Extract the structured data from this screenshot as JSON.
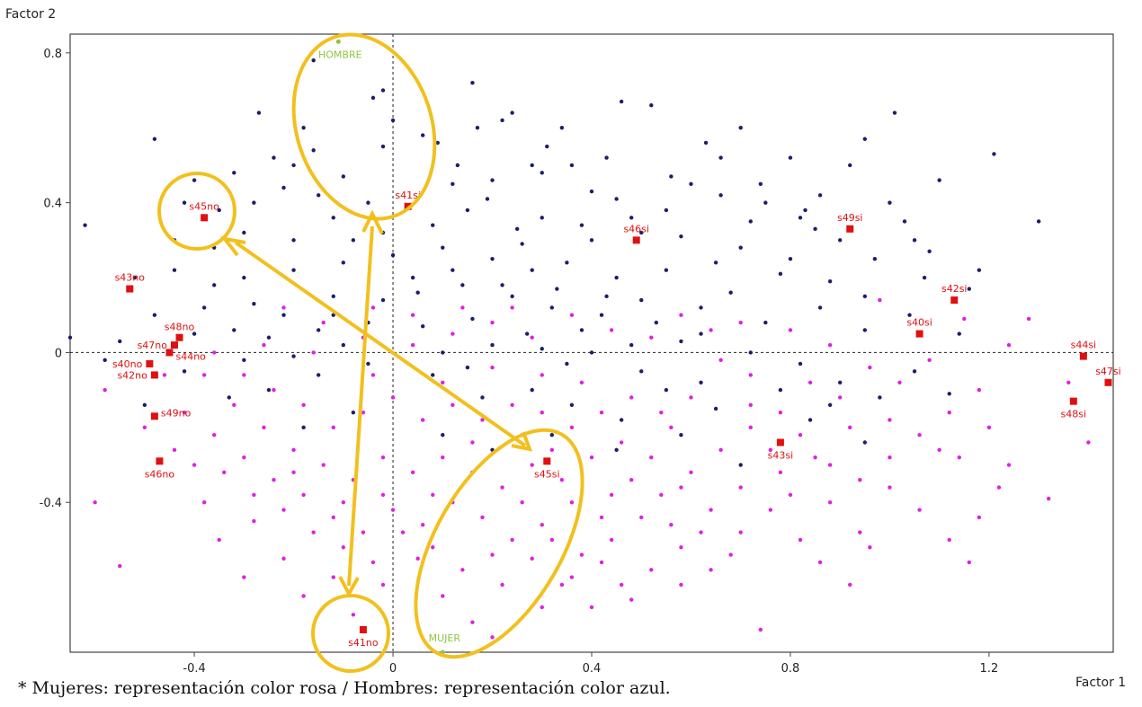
{
  "chart_data": {
    "type": "scatter",
    "xlabel": "Factor 1",
    "ylabel": "Factor 2",
    "xlim": [
      -0.65,
      1.45
    ],
    "ylim": [
      -0.8,
      0.85
    ],
    "x_ticks": [
      -0.4,
      0,
      0.4,
      0.8,
      1.2
    ],
    "x_tick_labels": [
      "-0.4",
      "0",
      "0.4",
      "0.8",
      "1.2"
    ],
    "y_ticks": [
      -0.4,
      0,
      0.4,
      0.8
    ],
    "y_tick_labels": [
      "-0.4",
      "0",
      "0.4",
      "0.8"
    ],
    "reference_lines": {
      "x": 0,
      "y": 0
    },
    "colors": {
      "men_points": "#1b1f6b",
      "women_points": "#e020e0",
      "modalities": "#e01010",
      "sex": "#8cc63f",
      "annotation": "#f2c01e"
    },
    "modalities": [
      {
        "label": "s41si",
        "x": 0.03,
        "y": 0.39
      },
      {
        "label": "s45no",
        "x": -0.38,
        "y": 0.36
      },
      {
        "label": "s46si",
        "x": 0.49,
        "y": 0.3
      },
      {
        "label": "s49si",
        "x": 0.92,
        "y": 0.33
      },
      {
        "label": "s43no",
        "x": -0.53,
        "y": 0.17
      },
      {
        "label": "s42si",
        "x": 1.13,
        "y": 0.14
      },
      {
        "label": "s48no",
        "x": -0.43,
        "y": 0.04
      },
      {
        "label": "s47no",
        "x": -0.44,
        "y": 0.02
      },
      {
        "label": "s40si",
        "x": 1.06,
        "y": 0.05
      },
      {
        "label": "s44no",
        "x": -0.45,
        "y": 0.0
      },
      {
        "label": "s44si",
        "x": 1.39,
        "y": -0.01
      },
      {
        "label": "s40no",
        "x": -0.49,
        "y": -0.03
      },
      {
        "label": "s42no",
        "x": -0.48,
        "y": -0.06
      },
      {
        "label": "s47si",
        "x": 1.44,
        "y": -0.08
      },
      {
        "label": "s48si",
        "x": 1.37,
        "y": -0.13
      },
      {
        "label": "s49no",
        "x": -0.48,
        "y": -0.17
      },
      {
        "label": "s43si",
        "x": 0.78,
        "y": -0.24
      },
      {
        "label": "s46no",
        "x": -0.47,
        "y": -0.29
      },
      {
        "label": "s45si",
        "x": 0.31,
        "y": -0.29
      },
      {
        "label": "s41no",
        "x": -0.06,
        "y": -0.74
      }
    ],
    "sex_points": [
      {
        "label": "HOMBRE",
        "x": -0.11,
        "y": 0.83
      },
      {
        "label": "MUJER",
        "x": 0.1,
        "y": -0.8
      }
    ],
    "individuals_men": [
      [
        -0.16,
        0.78
      ],
      [
        -0.04,
        0.68
      ],
      [
        -0.02,
        0.55
      ],
      [
        0.0,
        0.62
      ],
      [
        0.06,
        0.58
      ],
      [
        0.16,
        0.72
      ],
      [
        0.24,
        0.64
      ],
      [
        0.31,
        0.55
      ],
      [
        0.46,
        0.67
      ],
      [
        0.52,
        0.66
      ],
      [
        0.7,
        0.6
      ],
      [
        0.8,
        0.52
      ],
      [
        1.01,
        0.64
      ],
      [
        1.21,
        0.53
      ],
      [
        0.95,
        0.57
      ],
      [
        -0.27,
        0.64
      ],
      [
        -0.18,
        0.6
      ],
      [
        -0.48,
        0.57
      ],
      [
        -0.62,
        0.34
      ],
      [
        -0.4,
        0.46
      ],
      [
        -0.28,
        0.4
      ],
      [
        -0.24,
        0.52
      ],
      [
        -0.2,
        0.5
      ],
      [
        -0.1,
        0.47
      ],
      [
        0.13,
        0.5
      ],
      [
        0.2,
        0.46
      ],
      [
        0.3,
        0.48
      ],
      [
        0.36,
        0.5
      ],
      [
        0.4,
        0.43
      ],
      [
        0.45,
        0.41
      ],
      [
        0.6,
        0.45
      ],
      [
        0.66,
        0.42
      ],
      [
        0.75,
        0.4
      ],
      [
        0.83,
        0.38
      ],
      [
        0.9,
        0.3
      ],
      [
        1.0,
        0.4
      ],
      [
        1.1,
        0.46
      ],
      [
        1.3,
        0.35
      ],
      [
        1.05,
        0.3
      ],
      [
        0.97,
        0.25
      ],
      [
        0.85,
        0.33
      ],
      [
        0.72,
        0.35
      ],
      [
        0.55,
        0.38
      ],
      [
        0.5,
        0.32
      ],
      [
        0.4,
        0.3
      ],
      [
        0.3,
        0.36
      ],
      [
        0.25,
        0.33
      ],
      [
        0.15,
        0.38
      ],
      [
        0.08,
        0.34
      ],
      [
        -0.05,
        0.4
      ],
      [
        -0.12,
        0.36
      ],
      [
        -0.2,
        0.3
      ],
      [
        -0.3,
        0.32
      ],
      [
        -0.36,
        0.28
      ],
      [
        -0.44,
        0.3
      ],
      [
        -0.52,
        0.2
      ],
      [
        -0.44,
        0.22
      ],
      [
        -0.36,
        0.18
      ],
      [
        -0.3,
        0.2
      ],
      [
        -0.2,
        0.22
      ],
      [
        -0.1,
        0.24
      ],
      [
        0.0,
        0.26
      ],
      [
        0.1,
        0.28
      ],
      [
        0.2,
        0.25
      ],
      [
        0.28,
        0.22
      ],
      [
        0.35,
        0.24
      ],
      [
        0.45,
        0.2
      ],
      [
        0.55,
        0.22
      ],
      [
        0.65,
        0.24
      ],
      [
        0.78,
        0.21
      ],
      [
        0.88,
        0.19
      ],
      [
        0.95,
        0.15
      ],
      [
        1.07,
        0.2
      ],
      [
        1.16,
        0.17
      ],
      [
        1.18,
        0.22
      ],
      [
        0.62,
        0.12
      ],
      [
        0.5,
        0.14
      ],
      [
        0.42,
        0.1
      ],
      [
        0.32,
        0.12
      ],
      [
        0.24,
        0.15
      ],
      [
        0.14,
        0.18
      ],
      [
        0.05,
        0.16
      ],
      [
        -0.02,
        0.14
      ],
      [
        -0.12,
        0.15
      ],
      [
        -0.22,
        0.1
      ],
      [
        -0.32,
        0.06
      ],
      [
        -0.4,
        0.05
      ],
      [
        -0.55,
        0.03
      ],
      [
        -0.65,
        0.04
      ],
      [
        -0.25,
        0.04
      ],
      [
        -0.15,
        0.06
      ],
      [
        -0.05,
        0.08
      ],
      [
        0.06,
        0.07
      ],
      [
        0.16,
        0.09
      ],
      [
        0.27,
        0.05
      ],
      [
        0.38,
        0.06
      ],
      [
        0.48,
        0.02
      ],
      [
        0.58,
        0.03
      ],
      [
        0.72,
        0.0
      ],
      [
        0.82,
        -0.03
      ],
      [
        0.9,
        -0.08
      ],
      [
        0.98,
        -0.12
      ],
      [
        1.05,
        -0.05
      ],
      [
        1.12,
        -0.11
      ],
      [
        0.65,
        -0.15
      ],
      [
        0.55,
        -0.1
      ],
      [
        0.46,
        -0.18
      ],
      [
        0.36,
        -0.14
      ],
      [
        0.28,
        -0.1
      ],
      [
        0.18,
        -0.12
      ],
      [
        0.08,
        -0.06
      ],
      [
        -0.05,
        -0.03
      ],
      [
        -0.15,
        -0.06
      ],
      [
        -0.25,
        -0.1
      ],
      [
        -0.33,
        -0.12
      ],
      [
        -0.5,
        -0.14
      ],
      [
        -0.18,
        -0.2
      ],
      [
        -0.08,
        -0.16
      ],
      [
        0.1,
        -0.22
      ],
      [
        0.2,
        -0.26
      ],
      [
        0.32,
        -0.22
      ],
      [
        0.45,
        -0.26
      ],
      [
        0.58,
        -0.22
      ],
      [
        0.7,
        -0.3
      ],
      [
        0.95,
        -0.24
      ],
      [
        0.84,
        -0.18
      ],
      [
        -0.02,
        0.7
      ],
      [
        0.22,
        0.62
      ],
      [
        0.34,
        0.6
      ],
      [
        0.63,
        0.56
      ],
      [
        0.66,
        0.52
      ],
      [
        0.86,
        0.42
      ],
      [
        0.92,
        0.5
      ],
      [
        1.03,
        0.35
      ],
      [
        1.08,
        0.27
      ],
      [
        0.58,
        0.31
      ],
      [
        0.19,
        0.41
      ],
      [
        0.12,
        0.45
      ],
      [
        -0.15,
        0.42
      ],
      [
        -0.35,
        0.38
      ],
      [
        -0.42,
        0.4
      ],
      [
        -0.48,
        0.1
      ],
      [
        -0.38,
        0.12
      ],
      [
        -0.28,
        0.13
      ],
      [
        -0.08,
        0.3
      ],
      [
        -0.02,
        0.32
      ],
      [
        0.04,
        0.2
      ],
      [
        0.12,
        0.22
      ],
      [
        0.22,
        0.18
      ],
      [
        0.33,
        0.17
      ],
      [
        0.43,
        0.15
      ],
      [
        0.53,
        0.08
      ],
      [
        0.68,
        0.16
      ],
      [
        0.75,
        0.08
      ],
      [
        0.86,
        0.12
      ],
      [
        0.95,
        0.06
      ],
      [
        1.04,
        0.1
      ],
      [
        1.14,
        0.05
      ],
      [
        0.62,
        0.05
      ],
      [
        0.4,
        0.0
      ],
      [
        0.3,
        0.01
      ],
      [
        0.2,
        0.02
      ],
      [
        0.1,
        0.0
      ],
      [
        -0.1,
        0.02
      ],
      [
        -0.2,
        -0.01
      ],
      [
        -0.3,
        -0.02
      ],
      [
        -0.42,
        -0.05
      ],
      [
        -0.58,
        -0.02
      ],
      [
        0.5,
        -0.05
      ],
      [
        0.62,
        -0.08
      ],
      [
        0.78,
        -0.1
      ],
      [
        0.88,
        -0.14
      ],
      [
        0.35,
        -0.03
      ],
      [
        0.15,
        -0.04
      ],
      [
        -0.12,
        0.1
      ],
      [
        0.26,
        0.29
      ],
      [
        0.38,
        0.34
      ],
      [
        0.48,
        0.36
      ],
      [
        0.7,
        0.28
      ],
      [
        0.8,
        0.25
      ],
      [
        -0.32,
        0.48
      ],
      [
        -0.22,
        0.44
      ],
      [
        -0.16,
        0.54
      ],
      [
        0.09,
        0.56
      ],
      [
        0.17,
        0.6
      ],
      [
        0.28,
        0.5
      ],
      [
        0.43,
        0.52
      ],
      [
        0.56,
        0.47
      ],
      [
        0.74,
        0.45
      ],
      [
        0.82,
        0.36
      ]
    ],
    "individuals_women": [
      [
        -0.6,
        -0.4
      ],
      [
        -0.55,
        -0.57
      ],
      [
        -0.58,
        -0.1
      ],
      [
        -0.5,
        -0.2
      ],
      [
        -0.4,
        -0.3
      ],
      [
        -0.38,
        -0.4
      ],
      [
        -0.35,
        -0.5
      ],
      [
        -0.28,
        -0.45
      ],
      [
        -0.3,
        -0.6
      ],
      [
        -0.22,
        -0.55
      ],
      [
        -0.18,
        -0.65
      ],
      [
        -0.12,
        -0.6
      ],
      [
        -0.08,
        -0.7
      ],
      [
        -0.02,
        -0.62
      ],
      [
        0.05,
        -0.55
      ],
      [
        0.1,
        -0.65
      ],
      [
        0.16,
        -0.72
      ],
      [
        0.22,
        -0.62
      ],
      [
        0.28,
        -0.55
      ],
      [
        0.34,
        -0.62
      ],
      [
        0.4,
        -0.68
      ],
      [
        0.46,
        -0.62
      ],
      [
        0.52,
        -0.58
      ],
      [
        0.58,
        -0.52
      ],
      [
        0.64,
        -0.58
      ],
      [
        0.7,
        -0.48
      ],
      [
        0.76,
        -0.42
      ],
      [
        0.82,
        -0.5
      ],
      [
        0.88,
        -0.4
      ],
      [
        0.94,
        -0.48
      ],
      [
        1.0,
        -0.36
      ],
      [
        1.06,
        -0.42
      ],
      [
        1.12,
        -0.5
      ],
      [
        1.18,
        -0.44
      ],
      [
        1.24,
        -0.3
      ],
      [
        1.32,
        -0.39
      ],
      [
        1.4,
        -0.24
      ],
      [
        1.36,
        -0.08
      ],
      [
        1.2,
        -0.2
      ],
      [
        1.1,
        -0.26
      ],
      [
        1.0,
        -0.18
      ],
      [
        0.92,
        -0.2
      ],
      [
        0.85,
        -0.28
      ],
      [
        0.78,
        -0.32
      ],
      [
        0.72,
        -0.2
      ],
      [
        0.66,
        -0.26
      ],
      [
        0.6,
        -0.32
      ],
      [
        0.54,
        -0.38
      ],
      [
        0.48,
        -0.34
      ],
      [
        0.42,
        -0.44
      ],
      [
        0.36,
        -0.4
      ],
      [
        0.3,
        -0.46
      ],
      [
        0.24,
        -0.5
      ],
      [
        0.18,
        -0.44
      ],
      [
        0.12,
        -0.4
      ],
      [
        0.06,
        -0.46
      ],
      [
        0.0,
        -0.42
      ],
      [
        -0.06,
        -0.48
      ],
      [
        -0.12,
        -0.44
      ],
      [
        -0.18,
        -0.38
      ],
      [
        -0.24,
        -0.34
      ],
      [
        -0.3,
        -0.28
      ],
      [
        -0.36,
        -0.22
      ],
      [
        -0.42,
        -0.16
      ],
      [
        -0.46,
        -0.06
      ],
      [
        -0.38,
        -0.06
      ],
      [
        -0.32,
        -0.14
      ],
      [
        -0.26,
        -0.2
      ],
      [
        -0.2,
        -0.26
      ],
      [
        -0.14,
        -0.3
      ],
      [
        -0.08,
        -0.34
      ],
      [
        -0.02,
        -0.28
      ],
      [
        0.04,
        -0.32
      ],
      [
        0.1,
        -0.28
      ],
      [
        0.16,
        -0.32
      ],
      [
        0.22,
        -0.36
      ],
      [
        0.28,
        -0.3
      ],
      [
        0.34,
        -0.34
      ],
      [
        0.4,
        -0.28
      ],
      [
        0.46,
        -0.24
      ],
      [
        0.52,
        -0.28
      ],
      [
        0.58,
        -0.36
      ],
      [
        0.64,
        -0.42
      ],
      [
        0.7,
        -0.36
      ],
      [
        0.76,
        -0.26
      ],
      [
        0.82,
        -0.22
      ],
      [
        0.88,
        -0.3
      ],
      [
        0.94,
        -0.34
      ],
      [
        1.0,
        -0.28
      ],
      [
        1.06,
        -0.22
      ],
      [
        1.12,
        -0.16
      ],
      [
        1.18,
        -0.1
      ],
      [
        1.24,
        0.02
      ],
      [
        1.28,
        0.09
      ],
      [
        1.15,
        0.09
      ],
      [
        0.98,
        0.14
      ],
      [
        0.88,
        0.02
      ],
      [
        0.8,
        0.06
      ],
      [
        0.72,
        -0.06
      ],
      [
        0.66,
        -0.02
      ],
      [
        0.6,
        -0.12
      ],
      [
        0.54,
        -0.16
      ],
      [
        0.48,
        -0.12
      ],
      [
        0.42,
        -0.16
      ],
      [
        0.36,
        -0.2
      ],
      [
        0.3,
        -0.16
      ],
      [
        0.24,
        -0.14
      ],
      [
        0.18,
        -0.18
      ],
      [
        0.12,
        -0.14
      ],
      [
        0.06,
        -0.18
      ],
      [
        0.0,
        -0.12
      ],
      [
        -0.06,
        -0.16
      ],
      [
        -0.12,
        -0.2
      ],
      [
        -0.18,
        -0.14
      ],
      [
        -0.24,
        -0.1
      ],
      [
        -0.3,
        -0.06
      ],
      [
        -0.36,
        0.0
      ],
      [
        -0.26,
        0.02
      ],
      [
        -0.16,
        0.0
      ],
      [
        -0.06,
        0.04
      ],
      [
        0.04,
        0.02
      ],
      [
        0.12,
        0.05
      ],
      [
        0.2,
        0.08
      ],
      [
        0.28,
        0.04
      ],
      [
        0.36,
        0.1
      ],
      [
        0.44,
        0.06
      ],
      [
        0.52,
        0.04
      ],
      [
        0.58,
        0.1
      ],
      [
        0.64,
        0.06
      ],
      [
        0.7,
        0.08
      ],
      [
        0.24,
        0.12
      ],
      [
        0.14,
        0.12
      ],
      [
        0.04,
        0.1
      ],
      [
        -0.04,
        0.12
      ],
      [
        -0.14,
        0.08
      ],
      [
        -0.22,
        0.12
      ],
      [
        0.3,
        -0.06
      ],
      [
        0.2,
        -0.04
      ],
      [
        0.1,
        -0.08
      ],
      [
        -0.04,
        -0.06
      ],
      [
        0.5,
        -0.44
      ],
      [
        0.56,
        -0.46
      ],
      [
        0.62,
        -0.48
      ],
      [
        0.44,
        -0.5
      ],
      [
        0.38,
        -0.54
      ],
      [
        0.32,
        -0.5
      ],
      [
        0.26,
        -0.4
      ],
      [
        0.2,
        -0.54
      ],
      [
        0.14,
        -0.58
      ],
      [
        0.08,
        -0.52
      ],
      [
        0.02,
        -0.48
      ],
      [
        -0.04,
        -0.56
      ],
      [
        -0.1,
        -0.52
      ],
      [
        -0.16,
        -0.48
      ],
      [
        -0.22,
        -0.42
      ],
      [
        -0.28,
        -0.38
      ],
      [
        -0.34,
        -0.32
      ],
      [
        -0.44,
        -0.26
      ],
      [
        0.36,
        -0.6
      ],
      [
        0.42,
        -0.56
      ],
      [
        0.3,
        -0.68
      ],
      [
        0.2,
        -0.76
      ],
      [
        0.48,
        -0.66
      ],
      [
        0.74,
        -0.74
      ],
      [
        0.58,
        -0.62
      ],
      [
        0.86,
        -0.56
      ],
      [
        0.96,
        -0.52
      ],
      [
        1.16,
        -0.56
      ],
      [
        0.8,
        -0.38
      ],
      [
        0.68,
        -0.54
      ],
      [
        0.72,
        -0.14
      ],
      [
        0.78,
        -0.16
      ],
      [
        0.84,
        -0.08
      ],
      [
        0.9,
        -0.12
      ],
      [
        0.96,
        -0.04
      ],
      [
        1.02,
        -0.08
      ],
      [
        1.08,
        -0.02
      ],
      [
        1.14,
        -0.28
      ],
      [
        1.22,
        -0.36
      ],
      [
        0.92,
        -0.62
      ],
      [
        0.26,
        -0.22
      ],
      [
        0.32,
        -0.26
      ],
      [
        0.38,
        -0.08
      ],
      [
        0.44,
        -0.38
      ],
      [
        0.16,
        -0.24
      ],
      [
        0.08,
        -0.38
      ],
      [
        -0.02,
        -0.38
      ],
      [
        -0.1,
        -0.4
      ],
      [
        -0.2,
        -0.32
      ],
      [
        0.56,
        -0.2
      ]
    ]
  },
  "footnote": "* Mujeres: representación color rosa / Hombres: representación color azul."
}
